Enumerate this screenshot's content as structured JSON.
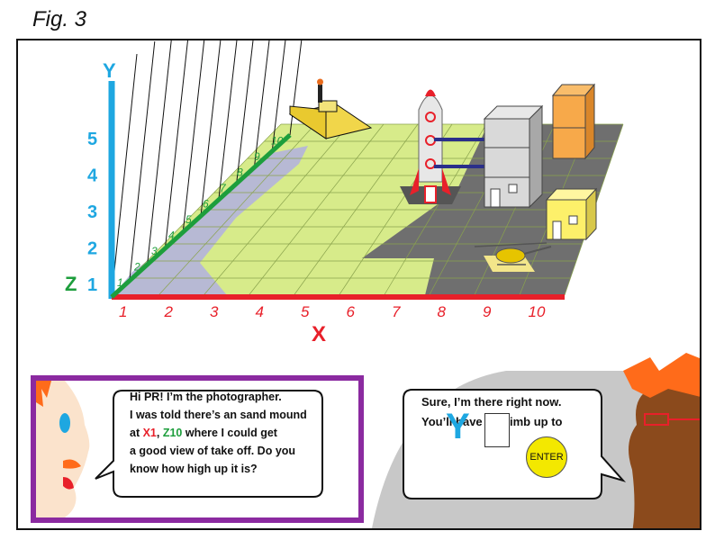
{
  "figure_label": "Fig. 3",
  "axes": {
    "x_label": "X",
    "y_label": "Y",
    "z_label": "Z",
    "x_ticks": [
      "1",
      "2",
      "3",
      "4",
      "5",
      "6",
      "7",
      "8",
      "9",
      "10"
    ],
    "y_ticks": [
      "1",
      "2",
      "3",
      "4",
      "5"
    ],
    "z_ticks": [
      "1",
      "2",
      "3",
      "4",
      "5",
      "6",
      "7",
      "8",
      "9",
      "10"
    ]
  },
  "photographer_bubble": {
    "line1": "Hi PR! I’m the photographer.",
    "line2": "I was told there’s an sand mound",
    "line3_pre": "at ",
    "line3_x": "X1",
    "line3_sep": ", ",
    "line3_z": "Z10",
    "line3_post": " where I could get",
    "line4": "a good view of take off. Do you",
    "line5": "know how high up it is?"
  },
  "reply_bubble": {
    "line1": "Sure, I’m there right now.",
    "line2": "You’ll have to climb up to"
  },
  "answer": {
    "prefix": "Y",
    "value": ""
  },
  "enter_label": "ENTER",
  "colors": {
    "x_axis": "#e8202a",
    "y_axis": "#1ea7e1",
    "z_axis": "#1d9e3c",
    "ground": "#d7eb8a",
    "pad": "#6f6f6f",
    "water": "#b4b4dc",
    "bubble_border": "#8b2aa0"
  }
}
